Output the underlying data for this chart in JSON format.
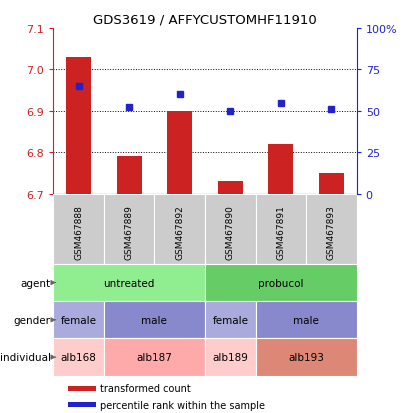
{
  "title": "GDS3619 / AFFYCUSTOMHF11910",
  "samples": [
    "GSM467888",
    "GSM467889",
    "GSM467892",
    "GSM467890",
    "GSM467891",
    "GSM467893"
  ],
  "red_values": [
    7.03,
    6.79,
    6.9,
    6.73,
    6.82,
    6.75
  ],
  "blue_percentiles": [
    65,
    52,
    60,
    50,
    55,
    51
  ],
  "ylim": [
    6.7,
    7.1
  ],
  "yticks": [
    6.7,
    6.8,
    6.9,
    7.0,
    7.1
  ],
  "right_yticks": [
    0,
    25,
    50,
    75,
    100
  ],
  "right_ytick_labels": [
    "0",
    "25",
    "50",
    "75",
    "100%"
  ],
  "agent_groups": [
    {
      "label": "untreated",
      "cols": [
        0,
        1,
        2
      ],
      "color": "#90EE90"
    },
    {
      "label": "probucol",
      "cols": [
        3,
        4,
        5
      ],
      "color": "#66CC66"
    }
  ],
  "gender_groups": [
    {
      "label": "female",
      "cols": [
        0
      ],
      "color": "#AAAADD"
    },
    {
      "label": "male",
      "cols": [
        1,
        2
      ],
      "color": "#8888CC"
    },
    {
      "label": "female",
      "cols": [
        3
      ],
      "color": "#AAAADD"
    },
    {
      "label": "male",
      "cols": [
        4,
        5
      ],
      "color": "#8888CC"
    }
  ],
  "individual_groups": [
    {
      "label": "alb168",
      "cols": [
        0
      ],
      "color": "#FFCCCC"
    },
    {
      "label": "alb187",
      "cols": [
        1,
        2
      ],
      "color": "#FFAAAA"
    },
    {
      "label": "alb189",
      "cols": [
        3
      ],
      "color": "#FFCCCC"
    },
    {
      "label": "alb193",
      "cols": [
        4,
        5
      ],
      "color": "#DD8877"
    }
  ],
  "sample_box_color": "#CCCCCC",
  "bar_color": "#CC2222",
  "dot_color": "#2222CC",
  "label_color_left": "#CC2222",
  "label_color_right": "#2222CC",
  "bar_width": 0.5,
  "grid_ticks": [
    6.8,
    6.9,
    7.0
  ],
  "row_labels": [
    "agent",
    "gender",
    "individual"
  ],
  "legend_items": [
    {
      "color": "#CC2222",
      "label": "transformed count"
    },
    {
      "color": "#2222CC",
      "label": "percentile rank within the sample"
    }
  ]
}
